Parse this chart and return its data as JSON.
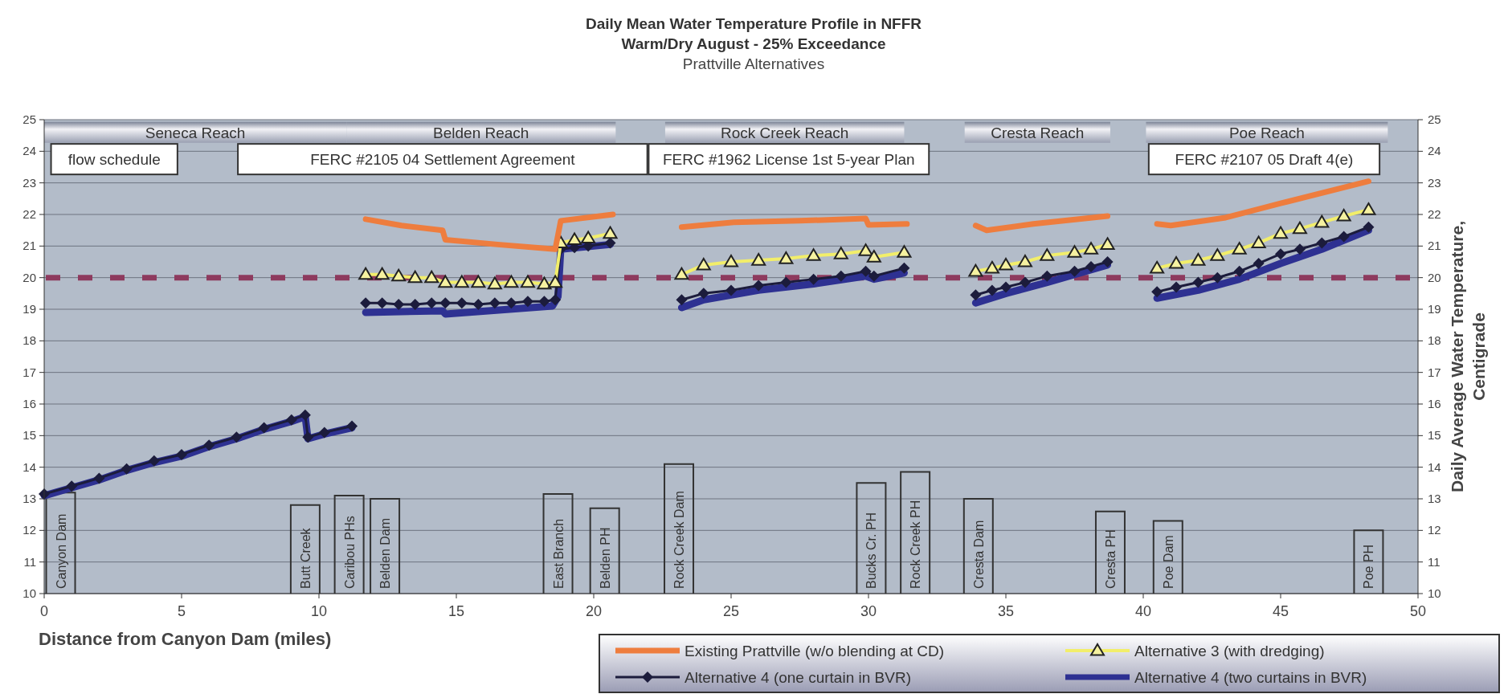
{
  "chart_data": {
    "type": "line",
    "title": "Daily Mean Water Temperature Profile in NFFR",
    "subtitle": "Warm/Dry August - 25% Exceedance",
    "xlabel": "Distance from Canyon Dam (miles)",
    "y2label": "Daily Average Water Temperature, Centigrade",
    "xlim": [
      0,
      50
    ],
    "xticks": [
      0,
      5,
      10,
      15,
      20,
      25,
      30,
      35,
      40,
      45,
      50
    ],
    "ylim": [
      10,
      25
    ],
    "yticks": [
      10,
      11,
      12,
      13,
      14,
      15,
      16,
      17,
      18,
      19,
      20,
      21,
      22,
      23,
      24,
      25
    ],
    "y2lim": [
      10,
      25
    ],
    "y2ticks": [
      10,
      11,
      12,
      13,
      14,
      15,
      16,
      17,
      18,
      19,
      20,
      21,
      22,
      23,
      24,
      25
    ],
    "grid": "y",
    "legend": "bottom right",
    "line_style": "solid",
    "ref_lines": [
      {
        "axis": "y",
        "value": 20,
        "color": "#8e3a5e",
        "line_style": "dashed"
      }
    ],
    "series": [
      {
        "name": "Existing Prattville (w/o blending at CD)",
        "color": "#ee7d3e",
        "marker": "none",
        "x": [
          11.7,
          13,
          14.5,
          14.6,
          16.5,
          18.6,
          18.8,
          20.7,
          22,
          23.2,
          25.1,
          27.5,
          29.9,
          30.0,
          31.4,
          32.5,
          33.9,
          34.3,
          36,
          38.7,
          39.5,
          40.5,
          41,
          43,
          45,
          48.2
        ],
        "values": [
          21.85,
          21.65,
          21.5,
          21.2,
          21.05,
          20.9,
          21.8,
          22.0,
          null,
          21.6,
          21.75,
          21.8,
          21.87,
          21.67,
          21.7,
          null,
          21.65,
          21.5,
          21.7,
          21.95,
          null,
          21.7,
          21.65,
          21.9,
          22.35,
          23.05
        ]
      },
      {
        "name": "Alternative 3 (with dredging)",
        "color": "#f2ee6a",
        "marker": "triangle",
        "x": [
          11.7,
          12.3,
          12.9,
          13.5,
          14.1,
          14.6,
          15.2,
          15.8,
          16.4,
          17,
          17.6,
          18.2,
          18.6,
          18.8,
          19.3,
          19.8,
          20.6,
          22,
          23.2,
          24,
          25,
          26,
          27,
          28,
          29,
          29.9,
          30.2,
          31.3,
          32.5,
          33.9,
          34.5,
          35,
          35.7,
          36.5,
          37.5,
          38.1,
          38.7,
          39.5,
          40.5,
          41.2,
          42,
          42.7,
          43.5,
          44.2,
          45,
          45.7,
          46.5,
          47.3,
          48.2
        ],
        "values": [
          20.1,
          20.1,
          20.05,
          20.0,
          20.0,
          19.85,
          19.85,
          19.85,
          19.8,
          19.85,
          19.85,
          19.8,
          19.85,
          21.1,
          21.2,
          21.25,
          21.4,
          null,
          20.1,
          20.4,
          20.5,
          20.55,
          20.6,
          20.7,
          20.75,
          20.85,
          20.65,
          20.8,
          null,
          20.2,
          20.3,
          20.4,
          20.5,
          20.7,
          20.8,
          20.9,
          21.05,
          null,
          20.3,
          20.45,
          20.55,
          20.7,
          20.9,
          21.1,
          21.4,
          21.55,
          21.75,
          21.95,
          22.15
        ]
      },
      {
        "name": "Alternative 4 (one curtain in BVR)",
        "color": "#1c1c3c",
        "marker": "diamond",
        "x": [
          0,
          1,
          2,
          3,
          4,
          5,
          6,
          7,
          8,
          9,
          9.5,
          9.6,
          10.2,
          11.2,
          11.5,
          11.7,
          12.3,
          12.9,
          13.5,
          14.1,
          14.6,
          15.2,
          15.8,
          16.4,
          17,
          17.6,
          18.2,
          18.6,
          18.8,
          19.3,
          19.8,
          20.6,
          22,
          23.2,
          24,
          25,
          26,
          27,
          28,
          29,
          29.9,
          30.2,
          31.3,
          32.5,
          33.9,
          34.5,
          35,
          35.7,
          36.5,
          37.5,
          38.1,
          38.7,
          39.5,
          40.5,
          41.2,
          42,
          42.7,
          43.5,
          44.2,
          45,
          45.7,
          46.5,
          47.3,
          48.2
        ],
        "values": [
          13.15,
          13.4,
          13.65,
          13.95,
          14.2,
          14.4,
          14.7,
          14.95,
          15.25,
          15.5,
          15.65,
          14.95,
          15.1,
          15.3,
          null,
          19.2,
          19.2,
          19.15,
          19.15,
          19.2,
          19.2,
          19.2,
          19.15,
          19.2,
          19.2,
          19.25,
          19.25,
          19.3,
          20.9,
          20.95,
          21.0,
          21.1,
          null,
          19.3,
          19.5,
          19.6,
          19.75,
          19.85,
          19.95,
          20.05,
          20.2,
          20.05,
          20.3,
          null,
          19.45,
          19.6,
          19.7,
          19.85,
          20.05,
          20.2,
          20.35,
          20.5,
          null,
          19.55,
          19.7,
          19.85,
          20.0,
          20.2,
          20.45,
          20.75,
          20.9,
          21.1,
          21.3,
          21.6
        ]
      },
      {
        "name": "Alternative 4 (two curtains in BVR)",
        "color": "#2e3192",
        "marker": "none",
        "x": [
          0,
          1,
          2,
          3,
          4,
          5,
          6,
          7,
          8,
          9,
          9.5,
          9.6,
          10.2,
          11.2,
          11.5,
          11.7,
          14.5,
          14.6,
          18.5,
          18.7,
          18.8,
          20.6,
          22,
          23.2,
          24,
          26,
          28,
          29.9,
          30.2,
          31.3,
          32.5,
          33.9,
          35,
          36.5,
          38.7,
          39.5,
          40.5,
          42,
          43.5,
          45,
          46.5,
          48.2
        ],
        "values": [
          13.1,
          13.35,
          13.6,
          13.9,
          14.15,
          14.35,
          14.65,
          14.9,
          15.2,
          15.45,
          15.6,
          14.9,
          15.05,
          15.25,
          null,
          18.9,
          18.95,
          18.85,
          19.1,
          19.4,
          20.9,
          21.05,
          null,
          19.05,
          19.3,
          19.6,
          19.8,
          20.05,
          19.95,
          20.15,
          null,
          19.2,
          19.5,
          19.85,
          20.4,
          null,
          19.35,
          19.6,
          19.95,
          20.45,
          20.9,
          21.5
        ]
      }
    ],
    "annotations": [
      "Prattville Alternatives",
      "Seneca Reach",
      "Belden Reach",
      "Rock Creek Reach",
      "Cresta Reach",
      "Poe Reach",
      "flow schedule",
      "FERC #2105 04 Settlement Agreement",
      "FERC #1962 License 1st 5-year Plan",
      "FERC #2107 05 Draft 4(e)",
      "Canyon Dam",
      "Butt Creek",
      "Caribou PHs",
      "Belden Dam",
      "East Branch",
      "Belden PH",
      "Rock Creek Dam",
      "Bucks Cr. PH",
      "Rock Creek PH",
      "Cresta Dam",
      "Cresta PH",
      "Poe Dam",
      "Poe PH"
    ]
  }
}
